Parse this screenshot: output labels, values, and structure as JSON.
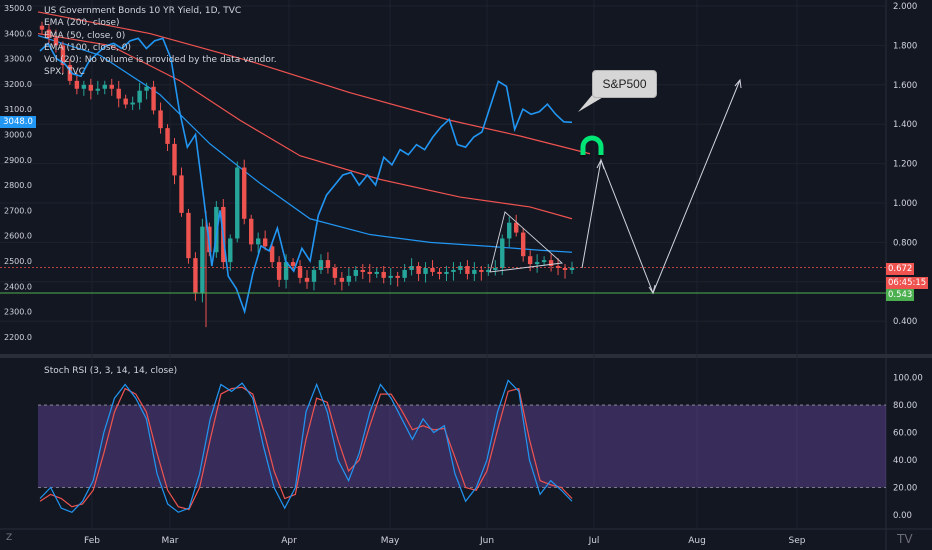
{
  "legend": {
    "title": "US Government Bonds 10 YR Yield, 1D, TVC",
    "lines": [
      "EMA (200, close)",
      "EMA (50, close, 0)",
      "EMA (100, close, 0)",
      "Vol (20): No volume is provided by the data vendor.",
      "SPX, TVC"
    ]
  },
  "rsi_label": "Stoch RSI (3, 3, 14, 14, close)",
  "callout": "S&P500",
  "spx_price_tag": "3048.0",
  "right_tags": {
    "yield": "0.672",
    "countdown": "06:45:15",
    "support": "0.543"
  },
  "footer": {
    "z_button": "Z",
    "logo": "TV"
  },
  "colors": {
    "background": "#131722",
    "up": "#26a69a",
    "down": "#ef5350",
    "spx": "#2196f3",
    "ema200": "#ef5350",
    "ema50": "#2196f3",
    "support": "#4caf50",
    "rsi_k": "#2196f3",
    "rsi_d": "#ef5350",
    "rsi_band": "#7e57c2"
  },
  "chart_data": [
    {
      "type": "candlestick",
      "title": "US Government Bonds 10 YR Yield, 1D, TVC",
      "x_tick_labels": [
        "Feb",
        "Mar",
        "Apr",
        "May",
        "Jun",
        "Jul",
        "Aug",
        "Sep"
      ],
      "right_axis_ticks": [
        "2.000",
        "1.800",
        "1.600",
        "1.400",
        "1.200",
        "1.000",
        "0.800",
        "0.600",
        "0.400"
      ],
      "left_axis_ticks": [
        "3500.0",
        "3400.0",
        "3300.0",
        "3200.0",
        "3100.0",
        "3000.0",
        "2900.0",
        "2800.0",
        "2700.0",
        "2600.0",
        "2500.0",
        "2400.0",
        "2300.0",
        "2200.0"
      ],
      "right_axis_range": [
        0.2,
        2.05
      ],
      "left_axis_range": [
        2150,
        3520
      ],
      "yield_close_approx": [
        1.88,
        1.84,
        1.8,
        1.7,
        1.62,
        1.58,
        1.6,
        1.57,
        1.58,
        1.6,
        1.58,
        1.53,
        1.5,
        1.51,
        1.57,
        1.59,
        1.47,
        1.38,
        1.3,
        1.14,
        0.95,
        0.72,
        0.54,
        0.88,
        0.75,
        0.98,
        0.7,
        0.82,
        1.18,
        0.92,
        0.79,
        0.82,
        0.78,
        0.7,
        0.61,
        0.7,
        0.68,
        0.62,
        0.6,
        0.66,
        0.71,
        0.67,
        0.62,
        0.6,
        0.63,
        0.66,
        0.65,
        0.64,
        0.65,
        0.62,
        0.63,
        0.62,
        0.66,
        0.68,
        0.64,
        0.67,
        0.65,
        0.64,
        0.65,
        0.66,
        0.68,
        0.64,
        0.66,
        0.65,
        0.66,
        0.67,
        0.82,
        0.9,
        0.85,
        0.73,
        0.69,
        0.7,
        0.71,
        0.68,
        0.67,
        0.66,
        0.672
      ],
      "spx_series": [
        3330,
        3360,
        3300,
        3280,
        3240,
        3230,
        3290,
        3320,
        3350,
        3360,
        3340,
        3370,
        3380,
        3340,
        3370,
        3380,
        3300,
        3100,
        2950,
        3000,
        2750,
        2480,
        2700,
        2440,
        2390,
        2300,
        2450,
        2560,
        2540,
        2630,
        2500,
        2460,
        2550,
        2500,
        2680,
        2760,
        2800,
        2840,
        2850,
        2800,
        2840,
        2800,
        2910,
        2880,
        2940,
        2920,
        2960,
        2940,
        2990,
        3030,
        3060,
        2960,
        2950,
        2990,
        3010,
        3110,
        3210,
        3190,
        3020,
        3100,
        3080,
        3090,
        3120,
        3080,
        3050,
        3048
      ],
      "series": [
        {
          "name": "EMA (200, close)"
        },
        {
          "name": "EMA (50, close, 0)"
        },
        {
          "name": "EMA (100, close, 0)"
        },
        {
          "name": "SPX, TVC"
        }
      ],
      "support_level": 0.543,
      "current_level": 0.672,
      "spx_last": 3048.0
    },
    {
      "type": "line",
      "title": "Stoch RSI (3, 3, 14, 14, close)",
      "y_ticks": [
        "100.00",
        "80.00",
        "60.00",
        "40.00",
        "20.00",
        "0.00"
      ],
      "ylim": [
        0,
        100
      ],
      "band": [
        20,
        80
      ],
      "k_approx": [
        12,
        20,
        5,
        2,
        10,
        25,
        60,
        85,
        95,
        85,
        70,
        30,
        8,
        2,
        5,
        30,
        70,
        95,
        90,
        96,
        85,
        50,
        20,
        5,
        20,
        75,
        95,
        75,
        40,
        25,
        45,
        75,
        95,
        85,
        70,
        55,
        70,
        60,
        65,
        30,
        10,
        20,
        40,
        75,
        98,
        90,
        40,
        15,
        25,
        18,
        10
      ],
      "d_approx": [
        10,
        15,
        12,
        6,
        8,
        18,
        45,
        75,
        92,
        88,
        75,
        45,
        18,
        6,
        4,
        20,
        55,
        88,
        92,
        93,
        88,
        62,
        32,
        12,
        15,
        55,
        85,
        82,
        55,
        32,
        40,
        65,
        88,
        88,
        76,
        62,
        65,
        62,
        63,
        42,
        20,
        18,
        32,
        62,
        90,
        92,
        55,
        25,
        22,
        20,
        12
      ]
    }
  ]
}
